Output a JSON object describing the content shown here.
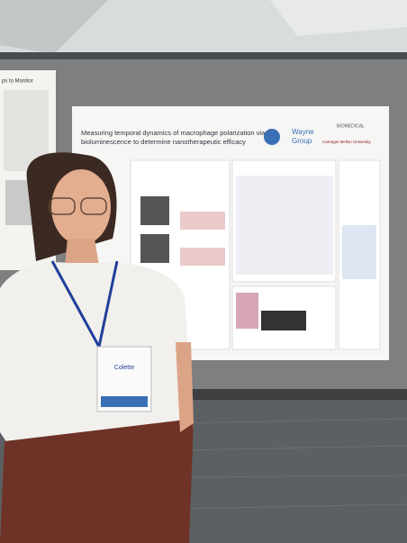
{
  "poster": {
    "title_lines": [
      "Measuring temporal dynamics of macrophage polarization via",
      "bioluminescence to determine nanotherapeutic efficacy"
    ],
    "lab": [
      "Wayne",
      "Group"
    ],
    "university": "Carnegie Mellon University",
    "department": "BIOMEDICAL"
  },
  "left_poster": {
    "heading": "ps to Monitor"
  },
  "badge": {
    "name": "Colette"
  }
}
